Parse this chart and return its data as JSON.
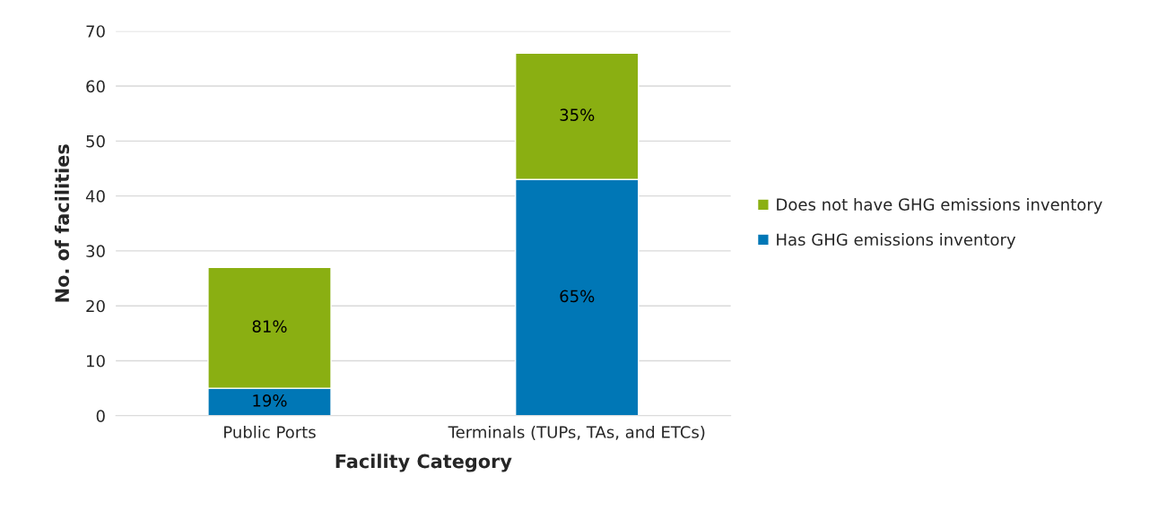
{
  "chart_data": {
    "type": "bar",
    "stacked": true,
    "xlabel": "Facility Category",
    "ylabel": "No. of facilities",
    "categories": [
      "Public Ports",
      "Terminals (TUPs, TAs, and ETCs)"
    ],
    "series": [
      {
        "name": "Has GHG emissions inventory",
        "color": "#0077b6",
        "values": [
          5,
          43
        ]
      },
      {
        "name": "Does not have GHG emissions inventory",
        "color": "#8aaf12",
        "values": [
          22,
          23
        ]
      }
    ],
    "annotations": [
      "19%",
      "65%",
      "81%",
      "35%"
    ],
    "ylim": [
      0,
      70
    ],
    "yticks": [
      0,
      10,
      20,
      30,
      40,
      50,
      60,
      70
    ],
    "grid": "y",
    "legend": "right"
  }
}
